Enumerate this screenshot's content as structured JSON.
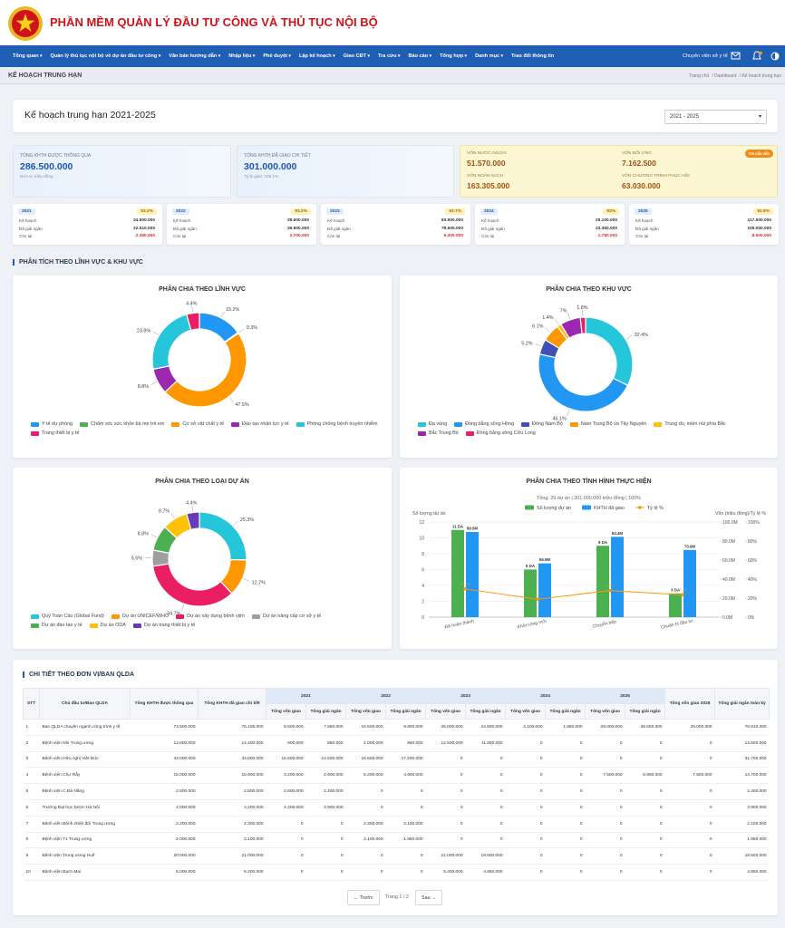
{
  "header": {
    "title": "PHẦN MỀM QUẢN LÝ ĐẦU TƯ CÔNG VÀ THỦ TỤC NỘI BỘ"
  },
  "nav": {
    "items": [
      "Tổng quan",
      "Quản lý thủ tục nội bộ về dự án đầu tư công",
      "Văn bản hướng dẫn",
      "Nhập liệu",
      "Phê duyệt",
      "Lập kế hoạch",
      "Giao CĐT",
      "Tra cứu",
      "Báo cáo",
      "Tổng hợp",
      "Danh mục",
      "Trao đổi thông tin"
    ],
    "user": "Chuyên viên sở y tế"
  },
  "breadcrumb": {
    "page": "KẾ HOẠCH TRUNG HẠN",
    "trail": [
      "Trang chủ",
      "Dashboard",
      "Kế hoạch trung hạn"
    ]
  },
  "plan": {
    "title": "Kế hoạch trung hạn 2021-2025",
    "period": "2021 - 2025"
  },
  "summary": [
    {
      "label": "TỔNG KHTH ĐƯỢC THÔNG QUA",
      "value": "286.500.000",
      "note": "Đơn vị: triệu đồng"
    },
    {
      "label": "TỔNG KHTH ĐÃ GIAO CHI TIẾT",
      "value": "301.000.000",
      "note": "Tỷ lệ giao: 105.1%"
    }
  ],
  "capital": {
    "badge": "Cơ cấu vốn",
    "items": [
      {
        "label": "VỐN NƯỚC NGOÀI",
        "value": "51.570.000"
      },
      {
        "label": "VỐN ĐỐI ỨNG",
        "value": "7.162.500"
      },
      {
        "label": "VỐN NGÂN SÁCH",
        "value": "163.305.000"
      },
      {
        "label": "VỐN CHƯƠNG TRÌNH PHỤC HỒI",
        "value": "63.030.000"
      }
    ]
  },
  "years": {
    "labels": [
      "Kế hoạch",
      "Đã giải ngân",
      "Còn lại"
    ],
    "items": [
      {
        "year": "2021",
        "rate": "93.2%",
        "values": [
          "34.900.000",
          "32.510.000",
          "2.390.000"
        ]
      },
      {
        "year": "2022",
        "rate": "93.2%",
        "values": [
          "39.600.000",
          "36.900.000",
          "2.700.000"
        ]
      },
      {
        "year": "2023",
        "rate": "93.7%",
        "values": [
          "83.900.000",
          "78.600.000",
          "5.300.000"
        ]
      },
      {
        "year": "2024",
        "rate": "93%",
        "values": [
          "25.100.000",
          "23.350.000",
          "1.750.000"
        ]
      },
      {
        "year": "2025",
        "rate": "92.8%",
        "values": [
          "117.500.000",
          "109.000.000",
          "8.500.000"
        ]
      }
    ]
  },
  "section_title": "PHÂN TÍCH THEO LĨNH VỰC & KHU VỰC",
  "chart_data": [
    {
      "type": "donut",
      "title": "PHÂN CHIA THEO LĨNH VỰC",
      "categories": [
        "Y tế dự phòng",
        "Chăm sóc sức khỏe bà mẹ trẻ em",
        "Cơ sở vật chất y tế",
        "Đào tạo nhân lực y tế",
        "Phòng chống bệnh truyền nhiễm",
        "Trang thiết bị y tế"
      ],
      "values": [
        15.2,
        0.3,
        47.5,
        8.8,
        23.8,
        4.4
      ],
      "value_labels": [
        "15.2%",
        "0.3%",
        "47.5%",
        "8.8%",
        "23.8%",
        "4.4%"
      ],
      "colors": [
        "#2196f3",
        "#4caf50",
        "#ff9800",
        "#9c27b0",
        "#26c6da",
        "#e91e63"
      ]
    },
    {
      "type": "donut",
      "title": "PHÂN CHIA THEO KHU VỰC",
      "categories": [
        "Đa vùng",
        "Đồng bằng sông Hồng",
        "Đông Nam Bộ",
        "Nam Trung Bộ và Tây Nguyên",
        "Trung du, miền núi phía Bắc",
        "Bắc Trung Bộ",
        "Đồng bằng sông Cửu Long"
      ],
      "values": [
        32.4,
        46.1,
        5.2,
        6.1,
        1.4,
        7,
        1.8
      ],
      "value_labels": [
        "32.4%",
        "46.1%",
        "5.2%",
        "6.1%",
        "1.4%",
        "7%",
        "1.8%"
      ],
      "colors": [
        "#26c6da",
        "#2196f3",
        "#3f51b5",
        "#ff9800",
        "#ffc107",
        "#9c27b0",
        "#e91e63"
      ]
    },
    {
      "type": "donut",
      "title": "PHÂN CHIA THEO LOẠI DỰ ÁN",
      "categories": [
        "Quỹ Toàn Cầu (Global Fund)",
        "Dự án UNICEF/WHO",
        "Dự án xây dựng bệnh viện",
        "Dự án nâng cấp cơ sở y tế",
        "Dự án đào tạo y tế",
        "Dự án ODA",
        "Dự án trang thiết bị y tế"
      ],
      "values": [
        25.3,
        12.7,
        34.7,
        5.5,
        8.8,
        8.7,
        4.4
      ],
      "value_labels": [
        "25.3%",
        "12.7%",
        "34.7%",
        "5.5%",
        "8.8%",
        "8.7%",
        "4.4%"
      ],
      "colors": [
        "#26c6da",
        "#ff9800",
        "#e91e63",
        "#9e9e9e",
        "#4caf50",
        "#ffc107",
        "#673ab7"
      ]
    },
    {
      "type": "combo",
      "title": "PHÂN CHIA THEO TÌNH HÌNH THỰC HIỆN",
      "subtitle": "Tổng: 29 dự án | 301.000.000 triệu đồng | 100%",
      "categories": [
        "Đã hoàn thành",
        "Khởi công mới",
        "Chuyển tiếp",
        "Chuẩn bị đầu tư"
      ],
      "ylabel": "Số lượng dự án",
      "y2label": "Vốn (triệu đồng)/Tỷ lệ %",
      "ylim": [
        0,
        12
      ],
      "yticks": [
        0,
        2,
        4,
        6,
        8,
        10,
        12
      ],
      "y2lim": [
        0,
        100
      ],
      "y2ticks": [
        {
          "value": 0,
          "label": "0.0M"
        },
        {
          "value": 20,
          "label": "20.0M"
        },
        {
          "value": 40,
          "label": "40.0M"
        },
        {
          "value": 60,
          "label": "60.0M"
        },
        {
          "value": 80,
          "label": "80.0M"
        },
        {
          "value": 100,
          "label": "100.0M"
        }
      ],
      "y3lim": [
        0,
        100
      ],
      "y3ticks": [
        {
          "value": 0,
          "label": "0%"
        },
        {
          "value": 20,
          "label": "20%"
        },
        {
          "value": 40,
          "label": "40%"
        },
        {
          "value": 60,
          "label": "60%"
        },
        {
          "value": 80,
          "label": "80%"
        },
        {
          "value": 100,
          "label": "100%"
        }
      ],
      "grid": true,
      "series": [
        {
          "name": "Số lượng dự án",
          "color": "#4caf50",
          "values": [
            11,
            6,
            9,
            3
          ],
          "value_labels": [
            "11 DA",
            "6 DA",
            "9 DA",
            "3 DA"
          ]
        },
        {
          "name": "KHTH đã giao",
          "color": "#2196f3",
          "axis": "y2",
          "values": [
            89.5,
            56.5,
            84.4,
            70.6
          ],
          "value_labels": [
            "89.5M",
            "56.5M",
            "84.4M",
            "70.6M"
          ]
        },
        {
          "name": "Tỷ lệ %",
          "color": "#ff9800",
          "axis": "y3",
          "type": "line",
          "values": [
            29.7,
            18.8,
            28,
            23.5
          ],
          "value_labels": [
            "29.7%",
            "18.8%",
            "28%",
            "23.5%"
          ]
        }
      ]
    }
  ],
  "table": {
    "title": "CHI TIẾT THEO ĐƠN VỊ/BAN QLDA",
    "headers": {
      "stt": "STT",
      "unit": "Chủ đầu tư/Ban QLDA",
      "approved": "Tổng KHTH được thông qua",
      "assigned": "Tổng KHTH đã giao chi tiết",
      "years": [
        "2021",
        "2022",
        "2023",
        "2024",
        "2025"
      ],
      "sub": [
        "Tổng vốn giao",
        "Tổng giải ngân"
      ],
      "total2025": "Tổng vốn giao 2025",
      "total_disbursed": "Tổng giải ngân toàn kỳ"
    },
    "rows": [
      [
        "1",
        "Ban QLDA chuyên ngành công trình y tế",
        "73.500.000",
        "76.105.000",
        "8.500.000",
        "7.960.000",
        "10.500.000",
        "9.800.000",
        "26.000.000",
        "24.500.000",
        "2.100.000",
        "1.850.000",
        "29.000.000",
        "26.500.000",
        "29.000.000",
        "70.610.000"
      ],
      [
        "2",
        "Bệnh viện Nhi Trung ương",
        "13.800.000",
        "14.400.000",
        "900.000",
        "850.000",
        "1.000.000",
        "950.000",
        "12.500.000",
        "11.800.000",
        "0",
        "0",
        "0",
        "0",
        "0",
        "13.600.000"
      ],
      [
        "3",
        "Bệnh viện Hữu nghị Việt Đức",
        "33.000.000",
        "34.000.000",
        "15.500.000",
        "14.500.000",
        "18.500.000",
        "17.200.000",
        "0",
        "0",
        "0",
        "0",
        "0",
        "0",
        "0",
        "31.700.000"
      ],
      [
        "4",
        "Bệnh viện Chợ Rẫy",
        "15.000.000",
        "15.900.000",
        "3.200.000",
        "2.900.000",
        "5.200.000",
        "4.900.000",
        "0",
        "0",
        "0",
        "0",
        "7.500.000",
        "6.900.000",
        "7.500.000",
        "14.700.000"
      ],
      [
        "5",
        "Bệnh viện C Đà Nẵng",
        "2.500.000",
        "2.600.000",
        "2.600.000",
        "2.400.000",
        "0",
        "0",
        "0",
        "0",
        "0",
        "0",
        "0",
        "0",
        "0",
        "2.400.000"
      ],
      [
        "6",
        "Trường Đại học Dược Hà Nội",
        "4.000.000",
        "4.200.000",
        "4.200.000",
        "3.900.000",
        "0",
        "0",
        "0",
        "0",
        "0",
        "0",
        "0",
        "0",
        "0",
        "3.900.000"
      ],
      [
        "7",
        "Bệnh viện Bệnh nhiệt đới Trung ương",
        "2.200.000",
        "2.300.000",
        "0",
        "0",
        "2.300.000",
        "2.100.000",
        "0",
        "0",
        "0",
        "0",
        "0",
        "0",
        "0",
        "2.100.000"
      ],
      [
        "8",
        "Bệnh viện 71 Trung ương",
        "2.000.000",
        "2.100.000",
        "0",
        "0",
        "2.100.000",
        "1.950.000",
        "0",
        "0",
        "0",
        "0",
        "0",
        "0",
        "0",
        "1.950.000"
      ],
      [
        "9",
        "Bệnh viện Trung ương Huế",
        "20.000.000",
        "21.000.000",
        "0",
        "0",
        "0",
        "0",
        "21.000.000",
        "19.500.000",
        "0",
        "0",
        "0",
        "0",
        "0",
        "19.500.000"
      ],
      [
        "10",
        "Bệnh viện Bạch Mai",
        "5.000.000",
        "5.200.000",
        "0",
        "0",
        "0",
        "0",
        "5.200.000",
        "4.850.000",
        "0",
        "0",
        "0",
        "0",
        "0",
        "4.850.000"
      ]
    ]
  },
  "pagination": {
    "prev": "← Trước",
    "page": "Trang 1 / 2",
    "next": "Sau →"
  }
}
